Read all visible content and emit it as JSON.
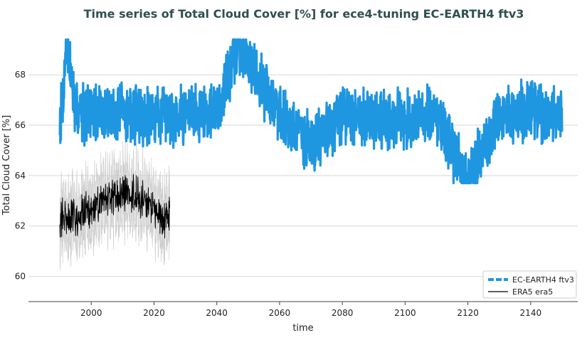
{
  "chart_data": {
    "type": "line",
    "title": "Time series of Total Cloud Cover [%] for ece4-tuning EC-EARTH4 ftv3",
    "xlabel": "time",
    "ylabel": "Total Cloud Cover [%]",
    "xlim": [
      1980,
      2155
    ],
    "ylim": [
      59,
      69.7
    ],
    "xticks": [
      2000,
      2020,
      2040,
      2060,
      2080,
      2100,
      2120,
      2140
    ],
    "yticks": [
      60,
      62,
      64,
      66,
      68
    ],
    "grid": "horizontal",
    "legend_position": "bottom-right",
    "series": [
      {
        "name": "EC-EARTH4 ftv3",
        "color": "#1f96e0",
        "style": "dashed-legend, thick line",
        "x_range": [
          1990,
          2150
        ],
        "mean": 66.4,
        "min": 63.7,
        "max": 69.4,
        "anchors": [
          [
            1990,
            66.3
          ],
          [
            1991,
            67.2
          ],
          [
            1992,
            69.4
          ],
          [
            1995,
            66.6
          ],
          [
            2000,
            66.5
          ],
          [
            2010,
            66.5
          ],
          [
            2020,
            66.4
          ],
          [
            2030,
            66.5
          ],
          [
            2040,
            66.6
          ],
          [
            2047,
            69.2
          ],
          [
            2060,
            66.5
          ],
          [
            2070,
            65.2
          ],
          [
            2080,
            66.4
          ],
          [
            2090,
            66.3
          ],
          [
            2100,
            66.2
          ],
          [
            2110,
            66.3
          ],
          [
            2120,
            63.7
          ],
          [
            2130,
            66.4
          ],
          [
            2140,
            66.5
          ],
          [
            2150,
            66.4
          ]
        ]
      },
      {
        "name": "ERA5 era5",
        "color": "#000000",
        "style": "thin line with grey spread band",
        "x_range": [
          1990,
          2025
        ],
        "mean": 62.7,
        "min": 60.7,
        "max": 64.9,
        "band_halfwidth": 1.4,
        "anchors": [
          [
            1990,
            62.3
          ],
          [
            1995,
            62.4
          ],
          [
            2000,
            62.6
          ],
          [
            2005,
            63.0
          ],
          [
            2010,
            63.3
          ],
          [
            2015,
            63.2
          ],
          [
            2020,
            62.6
          ],
          [
            2024,
            62.2
          ],
          [
            2025,
            62.7
          ]
        ]
      }
    ]
  }
}
